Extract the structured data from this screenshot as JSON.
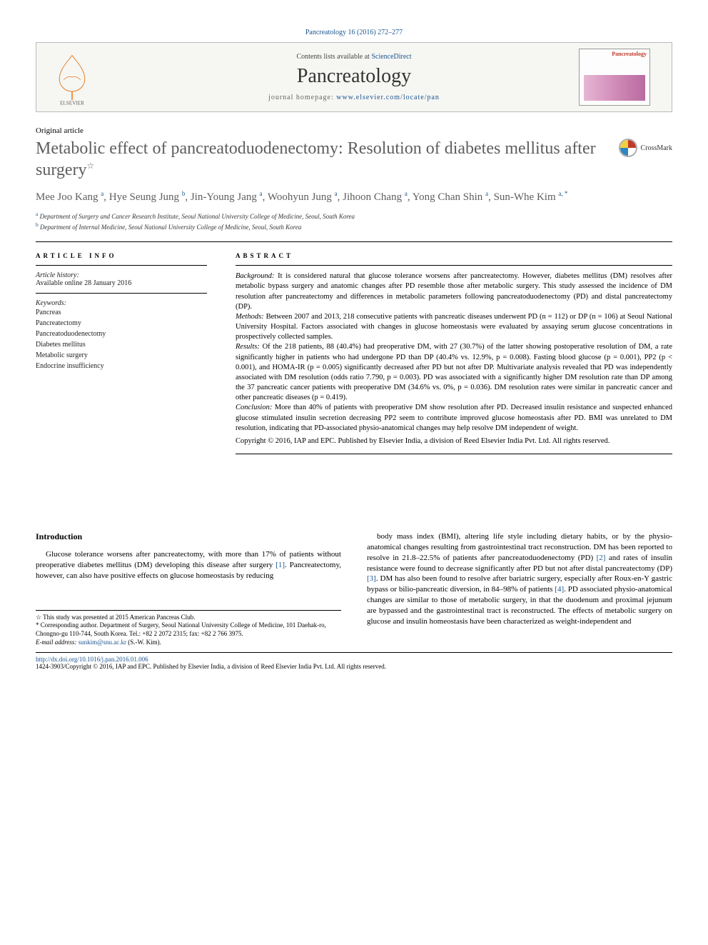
{
  "citation": "Pancreatology 16 (2016) 272–277",
  "masthead": {
    "contents_prefix": "Contents lists available at ",
    "contents_link": "ScienceDirect",
    "journal": "Pancreatology",
    "homepage_prefix": "journal homepage: ",
    "homepage_url": "www.elsevier.com/locate/pan",
    "cover_label": "Pancreatology"
  },
  "article_type": "Original article",
  "title": "Metabolic effect of pancreatoduodenectomy: Resolution of diabetes mellitus after surgery",
  "title_note_marker": "☆",
  "crossmark_label": "CrossMark",
  "authors": [
    {
      "name": "Mee Joo Kang",
      "aff": "a"
    },
    {
      "name": "Hye Seung Jung",
      "aff": "b"
    },
    {
      "name": "Jin-Young Jang",
      "aff": "a"
    },
    {
      "name": "Woohyun Jung",
      "aff": "a"
    },
    {
      "name": "Jihoon Chang",
      "aff": "a"
    },
    {
      "name": "Yong Chan Shin",
      "aff": "a"
    },
    {
      "name": "Sun-Whe Kim",
      "aff": "a, *"
    }
  ],
  "affiliations": {
    "a": "Department of Surgery and Cancer Research Institute, Seoul National University College of Medicine, Seoul, South Korea",
    "b": "Department of Internal Medicine, Seoul National University College of Medicine, Seoul, South Korea"
  },
  "article_info": {
    "heading": "ARTICLE INFO",
    "history_label": "Article history:",
    "history_value": "Available online 28 January 2016",
    "keywords_label": "Keywords:",
    "keywords": [
      "Pancreas",
      "Pancreatectomy",
      "Pancreatoduodenectomy",
      "Diabetes mellitus",
      "Metabolic surgery",
      "Endocrine insufficiency"
    ]
  },
  "abstract": {
    "heading": "ABSTRACT",
    "background_label": "Background:",
    "background": "It is considered natural that glucose tolerance worsens after pancreatectomy. However, diabetes mellitus (DM) resolves after metabolic bypass surgery and anatomic changes after PD resemble those after metabolic surgery. This study assessed the incidence of DM resolution after pancreatectomy and differences in metabolic parameters following pancreatoduodenectomy (PD) and distal pancreatectomy (DP).",
    "methods_label": "Methods:",
    "methods": "Between 2007 and 2013, 218 consecutive patients with pancreatic diseases underwent PD (n = 112) or DP (n = 106) at Seoul National University Hospital. Factors associated with changes in glucose homeostasis were evaluated by assaying serum glucose concentrations in prospectively collected samples.",
    "results_label": "Results:",
    "results": "Of the 218 patients, 88 (40.4%) had preoperative DM, with 27 (30.7%) of the latter showing postoperative resolution of DM, a rate significantly higher in patients who had undergone PD than DP (40.4% vs. 12.9%, p = 0.008). Fasting blood glucose (p = 0.001), PP2 (p < 0.001), and HOMA-IR (p = 0.005) significantly decreased after PD but not after DP. Multivariate analysis revealed that PD was independently associated with DM resolution (odds ratio 7.790, p = 0.003). PD was associated with a significantly higher DM resolution rate than DP among the 37 pancreatic cancer patients with preoperative DM (34.6% vs. 0%, p = 0.036). DM resolution rates were similar in pancreatic cancer and other pancreatic diseases (p = 0.419).",
    "conclusion_label": "Conclusion:",
    "conclusion": "More than 40% of patients with preoperative DM show resolution after PD. Decreased insulin resistance and suspected enhanced glucose stimulated insulin secretion decreasing PP2 seem to contribute improved glucose homeostasis after PD. BMI was unrelated to DM resolution, indicating that PD-associated physio-anatomical changes may help resolve DM independent of weight.",
    "copyright": "Copyright © 2016, IAP and EPC. Published by Elsevier India, a division of Reed Elsevier India Pvt. Ltd. All rights reserved."
  },
  "body": {
    "intro_heading": "Introduction",
    "col1": "Glucose tolerance worsens after pancreatectomy, with more than 17% of patients without preoperative diabetes mellitus (DM) developing this disease after surgery [1]. Pancreatectomy, however, can also have positive effects on glucose homeostasis by reducing",
    "col2": "body mass index (BMI), altering life style including dietary habits, or by the physio-anatomical changes resulting from gastrointestinal tract reconstruction. DM has been reported to resolve in 21.8–22.5% of patients after pancreatoduodenectomy (PD) [2] and rates of insulin resistance were found to decrease significantly after PD but not after distal pancreatectomy (DP) [3]. DM has also been found to resolve after bariatric surgery, especially after Roux-en-Y gastric bypass or bilio-pancreatic diversion, in 84–98% of patients [4]. PD associated physio-anatomical changes are similar to those of metabolic surgery, in that the duodenum and proximal jejunum are bypassed and the gastrointestinal tract is reconstructed. The effects of metabolic surgery on glucose and insulin homeostasis have been characterized as weight-independent and"
  },
  "footnotes": {
    "star": "This study was presented at 2015 American Pancreas Club.",
    "corr": "Corresponding author. Department of Surgery, Seoul National University College of Medicine, 101 Daehak-ro, Chongno-gu 110-744, South Korea. Tel.: +82 2 2072 2315; fax: +82 2 766 3975.",
    "email_label": "E-mail address:",
    "email": "sunkim@snu.ac.kr",
    "email_owner": "(S.-W. Kim)."
  },
  "bottom": {
    "doi": "http://dx.doi.org/10.1016/j.pan.2016.01.006",
    "issn_line": "1424-3903/Copyright © 2016, IAP and EPC. Published by Elsevier India, a division of Reed Elsevier India Pvt. Ltd. All rights reserved."
  },
  "refs": {
    "r1": "[1]",
    "r2": "[2]",
    "r3": "[3]",
    "r4": "[4]"
  },
  "colors": {
    "link": "#1a5490",
    "title_grey": "#5e5e5e",
    "bg": "#ffffff"
  }
}
